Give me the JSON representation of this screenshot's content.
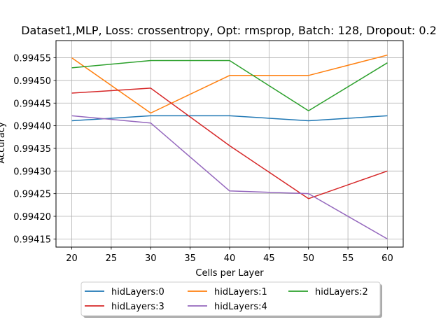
{
  "chart_data": {
    "type": "line",
    "title": "Dataset1,MLP, Loss: crossentropy, Opt: rmsprop, Batch: 128, Dropout: 0.2",
    "xlabel": "Cells per Layer",
    "ylabel": "Accuracy",
    "x": [
      20,
      30,
      40,
      50,
      60
    ],
    "xlim": [
      18,
      62
    ],
    "ylim": [
      0.994132,
      0.994588
    ],
    "xticks": [
      20,
      25,
      30,
      35,
      40,
      45,
      50,
      55,
      60
    ],
    "yticks": [
      0.99415,
      0.9942,
      0.99425,
      0.9943,
      0.99435,
      0.9944,
      0.99445,
      0.9945,
      0.99455
    ],
    "ytick_labels": [
      "0.99415",
      "0.99420",
      "0.99425",
      "0.99430",
      "0.99435",
      "0.99440",
      "0.99445",
      "0.99450",
      "0.99455"
    ],
    "grid": true,
    "legend_position": "bottom-center, below axes, 3 columns",
    "series": [
      {
        "name": "hidLayers:0",
        "color": "#1f77b4",
        "values": [
          0.994411,
          0.994422,
          0.994422,
          0.994411,
          0.994422
        ]
      },
      {
        "name": "hidLayers:1",
        "color": "#ff7f0e",
        "values": [
          0.99455,
          0.994428,
          0.994511,
          0.994511,
          0.994556
        ]
      },
      {
        "name": "hidLayers:2",
        "color": "#2ca02c",
        "values": [
          0.994528,
          0.994544,
          0.994544,
          0.994433,
          0.994539
        ]
      },
      {
        "name": "hidLayers:3",
        "color": "#d62728",
        "values": [
          0.994472,
          0.994483,
          0.994356,
          0.994239,
          0.9943
        ]
      },
      {
        "name": "hidLayers:4",
        "color": "#9467bd",
        "values": [
          0.994422,
          0.994406,
          0.994256,
          0.99425,
          0.99415
        ]
      }
    ]
  }
}
